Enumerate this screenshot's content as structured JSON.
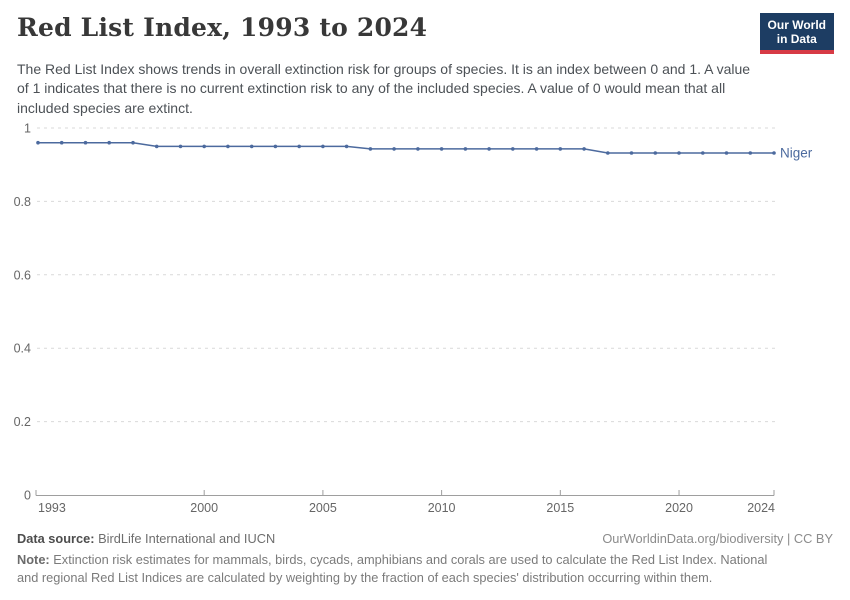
{
  "header": {
    "title": "Red List Index, 1993 to 2024",
    "subtitle": "The Red List Index shows trends in overall extinction risk for groups of species. It is an index between 0 and 1. A value of 1 indicates that there is no current extinction risk to any of the included species. A value of 0 would mean that all included species are extinct.",
    "logo": {
      "line1": "Our World",
      "line2": "in Data",
      "bg_color": "#1d3d63",
      "bar_color": "#d73a45"
    }
  },
  "chart_data": {
    "type": "line",
    "title": "Red List Index, 1993 to 2024",
    "xlabel": "",
    "ylabel": "",
    "xlim": [
      1993,
      2024
    ],
    "ylim": [
      0,
      1
    ],
    "xticks": [
      1993,
      2000,
      2005,
      2010,
      2015,
      2020,
      2024
    ],
    "yticks": [
      0,
      0.2,
      0.4,
      0.6,
      0.8,
      1
    ],
    "grid": "horizontal-dashed",
    "legend_position": "line-end-label",
    "series": [
      {
        "name": "Niger",
        "color": "#4c6a9e",
        "x": [
          1993,
          1994,
          1995,
          1996,
          1997,
          1998,
          1999,
          2000,
          2001,
          2002,
          2003,
          2004,
          2005,
          2006,
          2007,
          2008,
          2009,
          2010,
          2011,
          2012,
          2013,
          2014,
          2015,
          2016,
          2017,
          2018,
          2019,
          2020,
          2021,
          2022,
          2023,
          2024
        ],
        "values": [
          0.96,
          0.96,
          0.96,
          0.96,
          0.96,
          0.95,
          0.95,
          0.95,
          0.95,
          0.95,
          0.95,
          0.95,
          0.95,
          0.95,
          0.943,
          0.943,
          0.943,
          0.943,
          0.943,
          0.943,
          0.943,
          0.943,
          0.943,
          0.943,
          0.932,
          0.932,
          0.932,
          0.932,
          0.932,
          0.932,
          0.932,
          0.932
        ]
      }
    ],
    "style": {
      "grid_color": "#d9d9d9",
      "axis_color": "#9e9e9e",
      "tick_text_color": "#666666"
    }
  },
  "footer": {
    "data_source_label": "Data source:",
    "data_source_value": " BirdLife International and IUCN",
    "right_link": "OurWorldinData.org/biodiversity | CC BY",
    "note_label": "Note:",
    "note_value": " Extinction risk estimates for mammals, birds, cycads, amphibians and corals are used to calculate the Red List Index. National and regional Red List Indices are calculated by weighting by the fraction of each species' distribution occurring within them."
  }
}
